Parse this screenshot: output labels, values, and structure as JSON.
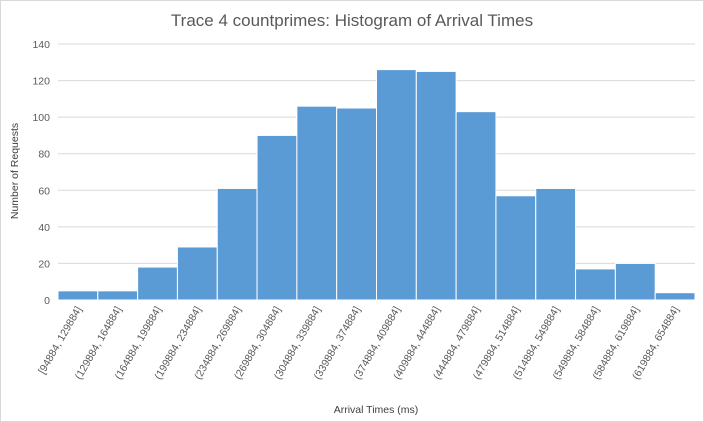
{
  "chart_data": {
    "type": "bar",
    "title": "Trace 4 countprimes: Histogram of Arrival Times",
    "xlabel": "Arrival Times (ms)",
    "ylabel": "Number of Requests",
    "ylim": [
      0,
      140
    ],
    "yticks": [
      0,
      20,
      40,
      60,
      80,
      100,
      120,
      140
    ],
    "grid": true,
    "legend": "none",
    "bar_color": "#5b9bd5",
    "categories": [
      "[94884, 129884]",
      "(129884, 164884]",
      "(164884, 199884]",
      "(199884, 234884]",
      "(234884, 269884]",
      "(269884, 304884]",
      "(304884, 339884]",
      "(339884, 374884]",
      "(374884, 409884]",
      "(409884, 444884]",
      "(444884, 479884]",
      "(479884, 514884]",
      "(514884, 549884]",
      "(549884, 584884]",
      "(584884, 619884]",
      "(619884, 654884]"
    ],
    "values": [
      5,
      5,
      18,
      29,
      61,
      90,
      106,
      105,
      126,
      125,
      103,
      57,
      61,
      17,
      20,
      4
    ]
  }
}
